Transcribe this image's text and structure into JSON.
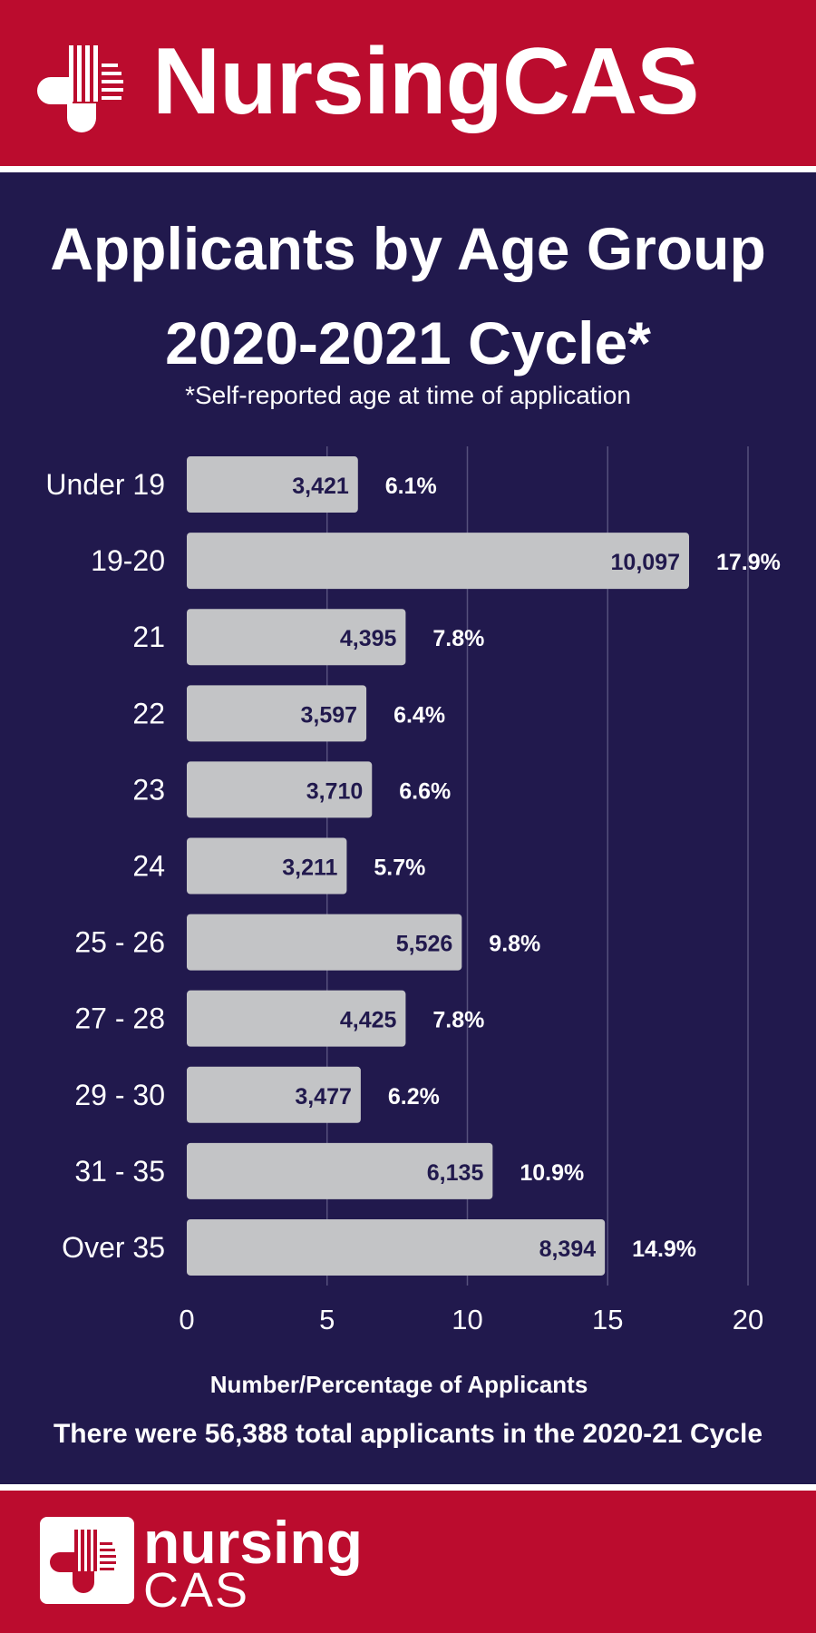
{
  "brand": {
    "name": "NursingCAS",
    "footer_line1": "nursing",
    "footer_line2": "CAS"
  },
  "header": {
    "title_line1": "Applicants by Age Group",
    "title_line2": "2020-2021 Cycle*",
    "subtitle": "*Self-reported age at time of application"
  },
  "footnote": "There were 56,388 total applicants in the 2020-21 Cycle",
  "colors": {
    "brand_red": "#bb0c2e",
    "navy": "#21194d",
    "bar": "#c3c4c6"
  },
  "chart_data": {
    "type": "bar",
    "orientation": "horizontal",
    "title": "Applicants by Age Group 2020-2021 Cycle*",
    "xlabel": "Number/Percentage of Applicants",
    "ylabel": "",
    "xlim": [
      0,
      20
    ],
    "xticks": [
      0,
      5,
      10,
      15,
      20
    ],
    "grid": true,
    "categories": [
      "Under 19",
      "19-20",
      "21",
      "22",
      "23",
      "24",
      "25 - 26",
      "27 - 28",
      "29 - 30",
      "31 - 35",
      "Over 35"
    ],
    "counts": [
      "3,421",
      "10,097",
      "4,395",
      "3,597",
      "3,710",
      "3,211",
      "5,526",
      "4,425",
      "3,477",
      "6,135",
      "8,394"
    ],
    "percent_labels": [
      "6.1%",
      "17.9%",
      "7.8%",
      "6.4%",
      "6.6%",
      "5.7%",
      "9.8%",
      "7.8%",
      "6.2%",
      "10.9%",
      "14.9%"
    ],
    "values": [
      6.1,
      17.9,
      7.8,
      6.4,
      6.6,
      5.7,
      9.8,
      7.8,
      6.2,
      10.9,
      14.9
    ]
  }
}
